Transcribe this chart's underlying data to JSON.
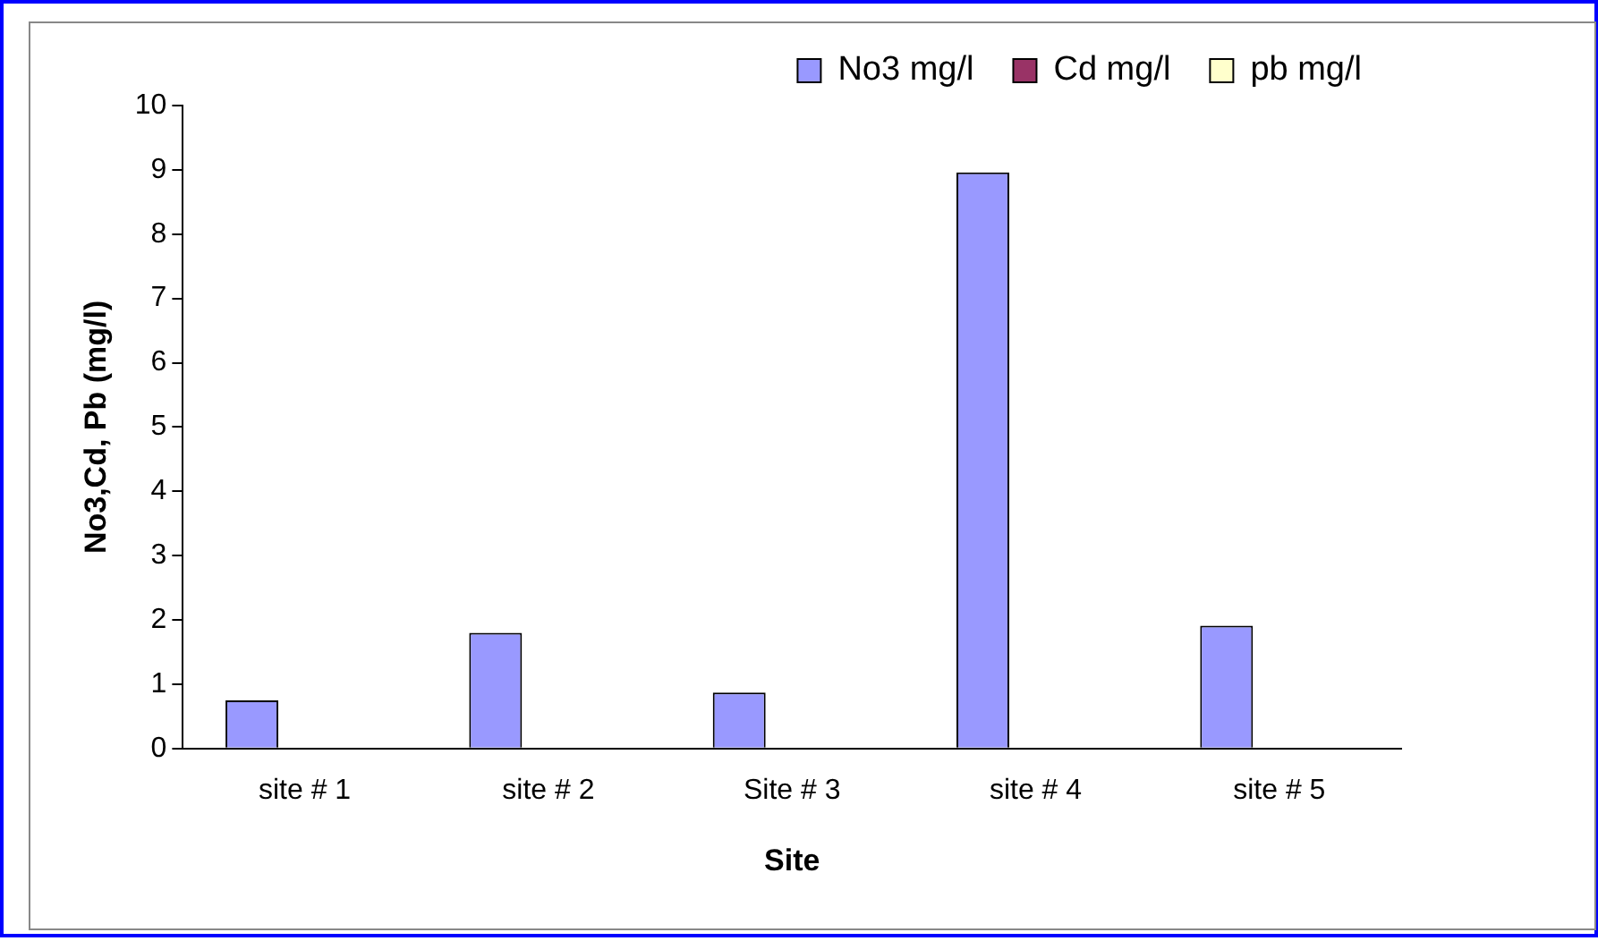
{
  "chart_data": {
    "type": "bar",
    "xlabel": "Site",
    "ylabel": "No3,Cd, Pb (mg/l)",
    "categories": [
      "site # 1",
      "site # 2",
      "Site # 3",
      "site # 4",
      "site # 5"
    ],
    "series": [
      {
        "name": "No3 mg/l",
        "color": "#9999ff",
        "values": [
          0.75,
          1.8,
          0.87,
          8.96,
          1.91
        ]
      },
      {
        "name": "Cd mg/l",
        "color": "#993366",
        "values": [
          0,
          0,
          0,
          0,
          0
        ]
      },
      {
        "name": "pb mg/l",
        "color": "#ffffcc",
        "values": [
          0,
          0,
          0,
          0,
          0
        ]
      }
    ],
    "ylim": [
      0,
      10
    ],
    "yticks": [
      0,
      1,
      2,
      3,
      4,
      5,
      6,
      7,
      8,
      9,
      10
    ],
    "grid": false,
    "legend": "top right"
  }
}
